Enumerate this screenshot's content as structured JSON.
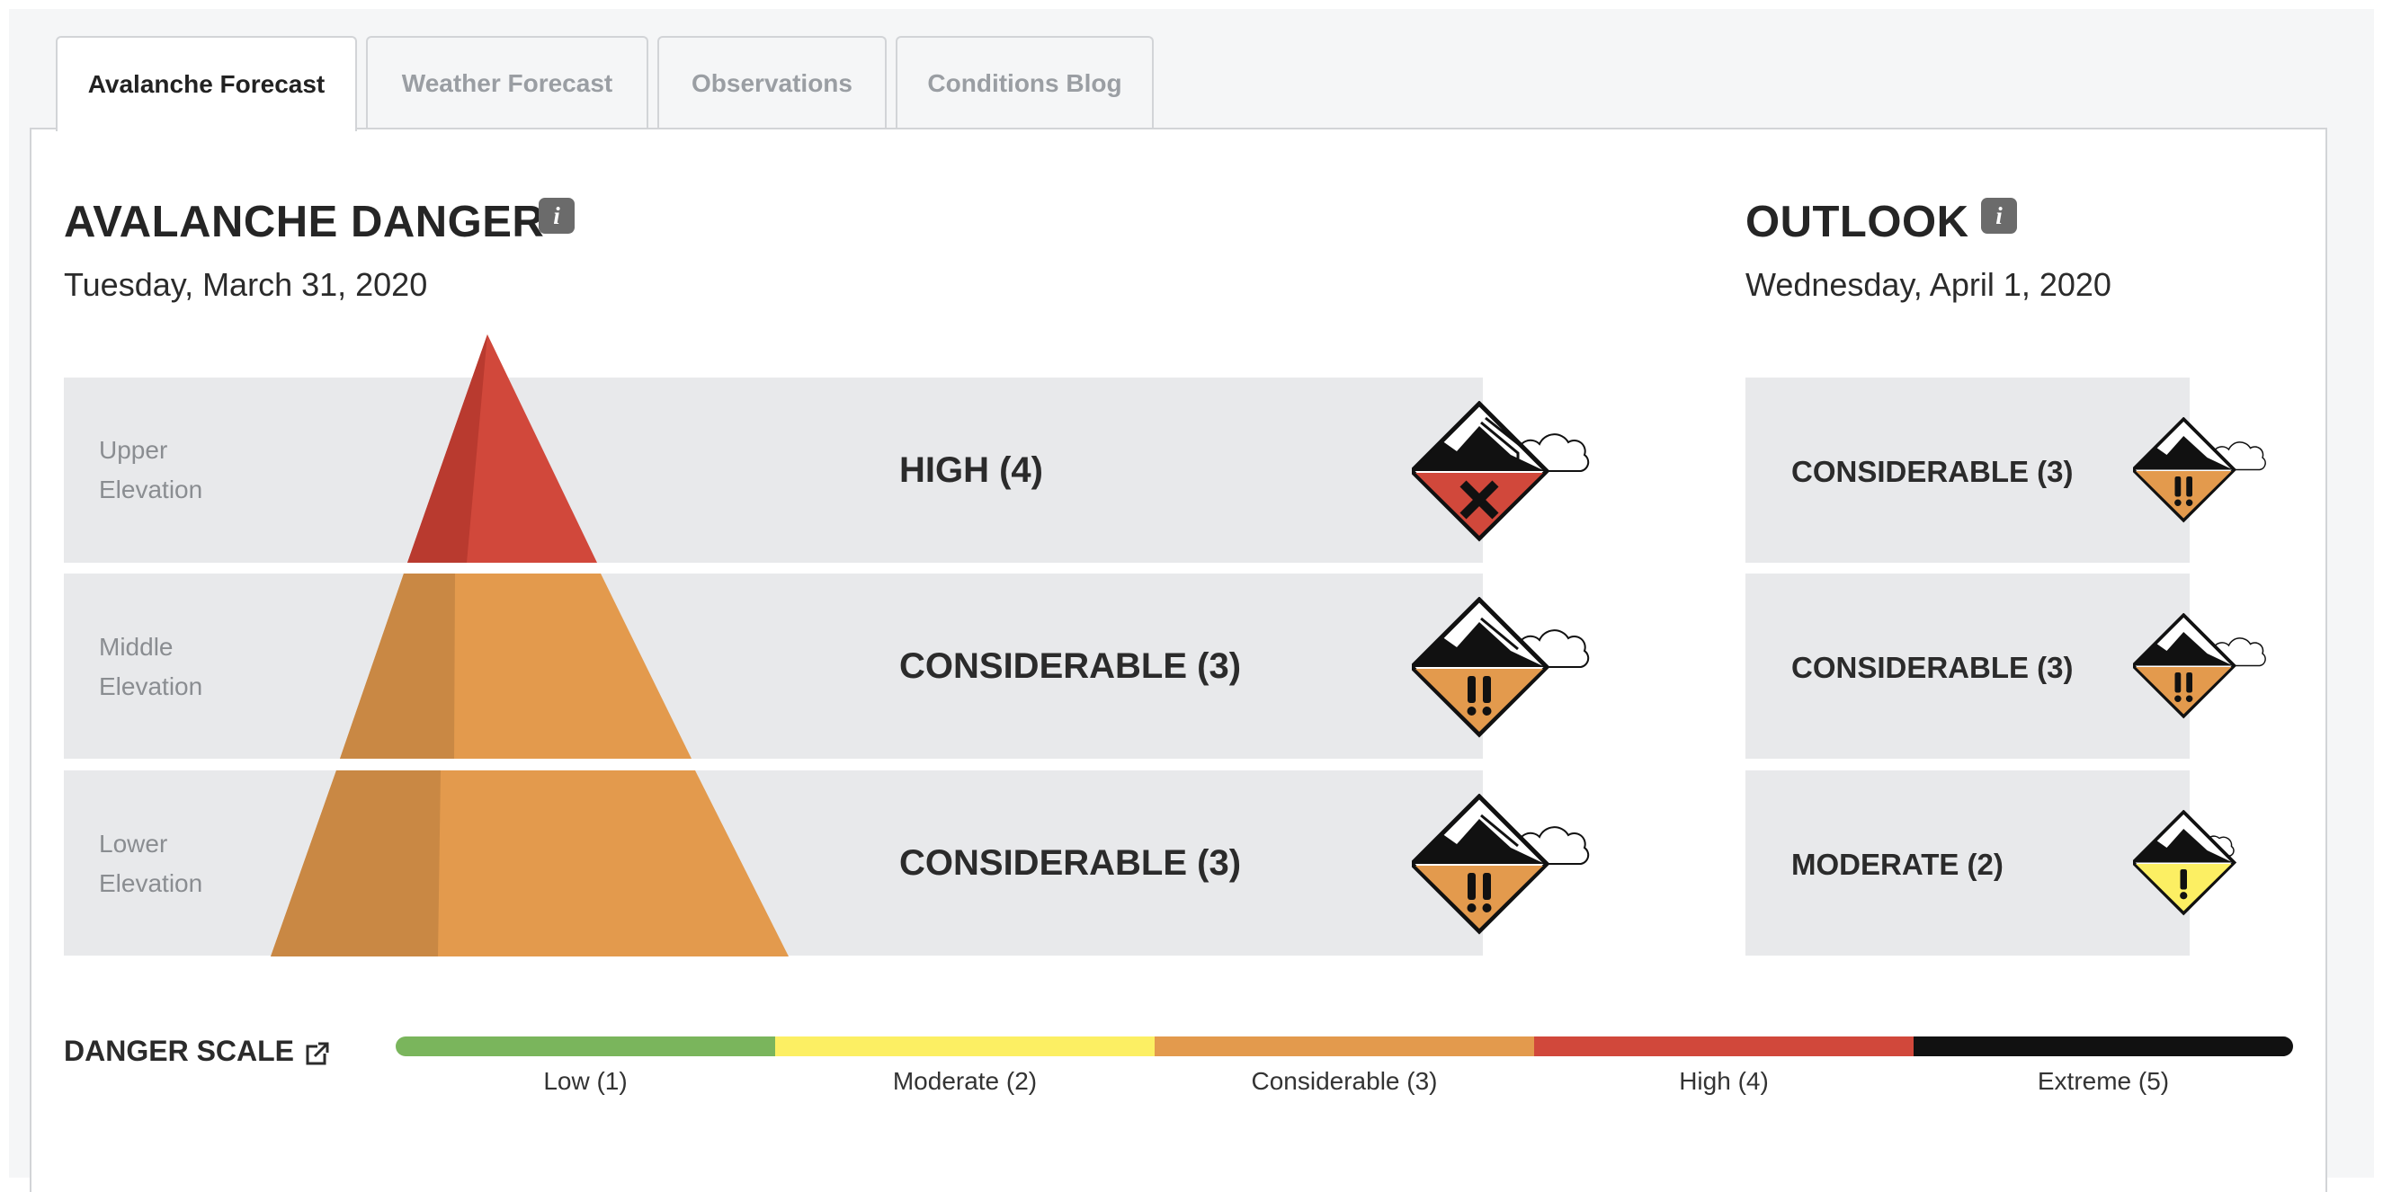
{
  "tabs": [
    {
      "label": "Avalanche Forecast",
      "active": true
    },
    {
      "label": "Weather Forecast",
      "active": false
    },
    {
      "label": "Observations",
      "active": false
    },
    {
      "label": "Conditions Blog",
      "active": false
    }
  ],
  "danger": {
    "title": "AVALANCHE DANGER",
    "info_icon": "i",
    "date": "Tuesday, March 31, 2020",
    "rows": [
      {
        "elevation_line1": "Upper",
        "elevation_line2": "Elevation",
        "rating": "HIGH (4)",
        "level": 4,
        "icon": "high-danger-icon"
      },
      {
        "elevation_line1": "Middle",
        "elevation_line2": "Elevation",
        "rating": "CONSIDERABLE (3)",
        "level": 3,
        "icon": "considerable-danger-icon"
      },
      {
        "elevation_line1": "Lower",
        "elevation_line2": "Elevation",
        "rating": "CONSIDERABLE (3)",
        "level": 3,
        "icon": "considerable-danger-icon"
      }
    ]
  },
  "outlook": {
    "title": "OUTLOOK",
    "info_icon": "i",
    "date": "Wednesday, April 1, 2020",
    "rows": [
      {
        "rating": "CONSIDERABLE (3)",
        "level": 3,
        "icon": "considerable-danger-icon"
      },
      {
        "rating": "CONSIDERABLE (3)",
        "level": 3,
        "icon": "considerable-danger-icon"
      },
      {
        "rating": "MODERATE (2)",
        "level": 2,
        "icon": "moderate-danger-icon"
      }
    ]
  },
  "danger_scale": {
    "title": "DANGER SCALE",
    "levels": [
      {
        "label": "Low (1)",
        "color": "#7ab55c"
      },
      {
        "label": "Moderate (2)",
        "color": "#fcef63"
      },
      {
        "label": "Considerable (3)",
        "color": "#e39a4d"
      },
      {
        "label": "High (4)",
        "color": "#d1483b"
      },
      {
        "label": "Extreme (5)",
        "color": "#111111"
      }
    ]
  },
  "colors": {
    "high": "#d1483b",
    "high_shade": "#b93a2f",
    "considerable": "#e39a4d",
    "considerable_shade": "#c98844",
    "moderate": "#fcef63",
    "band_bg": "#e8e9eb"
  }
}
